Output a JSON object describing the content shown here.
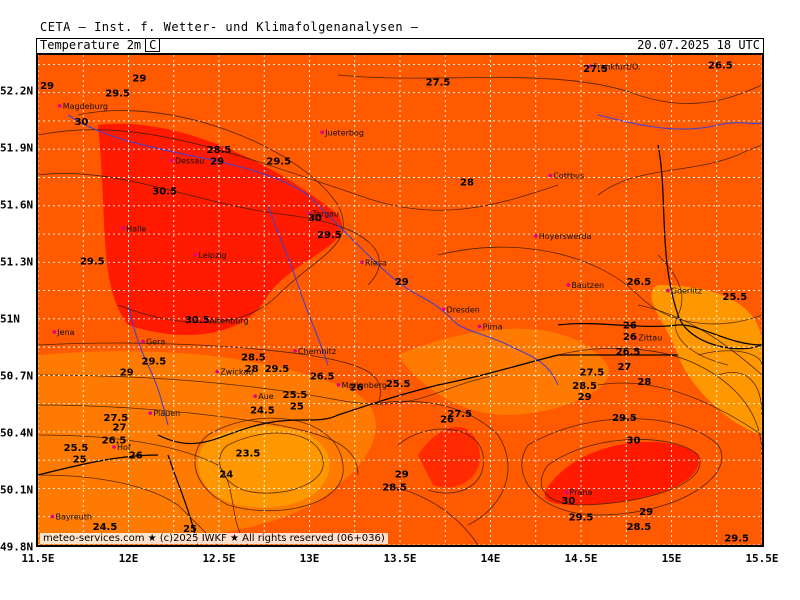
{
  "header": {
    "product": "CETA — Inst. f. Wetter- und Klimafolgenanalysen —",
    "parameter": "Temperature 2m",
    "unit": "C",
    "valid_time": "20.07.2025 18 UTC"
  },
  "axes": {
    "lon_labels": [
      "11.5E",
      "12E",
      "12.5E",
      "13E",
      "13.5E",
      "14E",
      "14.5E",
      "15E",
      "15.5E"
    ],
    "lat_labels": [
      "52.2N",
      "51.9N",
      "51.6N",
      "51.3N",
      "51N",
      "50.7N",
      "50.4N",
      "50.1N",
      "49.8N"
    ],
    "lon_range": [
      11.5,
      15.5
    ],
    "lat_range": [
      49.8,
      52.4
    ],
    "grid": true
  },
  "colors": {
    "background": "#ff5a00",
    "hot": "#ff1a00",
    "warm": "#ff7a00",
    "cool": "#ff9800",
    "grid": "#ffffff",
    "river": "#4a3fc9"
  },
  "cities": [
    {
      "name": "Magdeburg",
      "lon": 11.62,
      "lat": 52.13
    },
    {
      "name": "Dessau",
      "lon": 12.24,
      "lat": 51.84
    },
    {
      "name": "Jueterbog",
      "lon": 13.07,
      "lat": 51.99
    },
    {
      "name": "Frankfurt/O.",
      "lon": 14.55,
      "lat": 52.34
    },
    {
      "name": "Cottbus",
      "lon": 14.33,
      "lat": 51.76
    },
    {
      "name": "Halle",
      "lon": 11.97,
      "lat": 51.48
    },
    {
      "name": "Torgau",
      "lon": 13.0,
      "lat": 51.56
    },
    {
      "name": "Hoyerswerda",
      "lon": 14.25,
      "lat": 51.44
    },
    {
      "name": "Leipzig",
      "lon": 12.37,
      "lat": 51.34
    },
    {
      "name": "Riesa",
      "lon": 13.29,
      "lat": 51.3
    },
    {
      "name": "Bautzen",
      "lon": 14.43,
      "lat": 51.18
    },
    {
      "name": "Goerlitz",
      "lon": 14.98,
      "lat": 51.15
    },
    {
      "name": "Dresden",
      "lon": 13.74,
      "lat": 51.05
    },
    {
      "name": "Altenburg",
      "lon": 12.43,
      "lat": 50.99
    },
    {
      "name": "Jena",
      "lon": 11.59,
      "lat": 50.93
    },
    {
      "name": "Pirna",
      "lon": 13.94,
      "lat": 50.96
    },
    {
      "name": "Zittau",
      "lon": 14.8,
      "lat": 50.9
    },
    {
      "name": "Gera",
      "lon": 12.08,
      "lat": 50.88
    },
    {
      "name": "Chemnitz",
      "lon": 12.92,
      "lat": 50.83
    },
    {
      "name": "Zwickau",
      "lon": 12.49,
      "lat": 50.72
    },
    {
      "name": "Marienberg",
      "lon": 13.16,
      "lat": 50.65
    },
    {
      "name": "Aue",
      "lon": 12.7,
      "lat": 50.59
    },
    {
      "name": "Plauen",
      "lon": 12.12,
      "lat": 50.5
    },
    {
      "name": "Hof",
      "lon": 11.92,
      "lat": 50.32
    },
    {
      "name": "Praha",
      "lon": 14.42,
      "lat": 50.08
    },
    {
      "name": "Bayreuth",
      "lon": 11.58,
      "lat": 49.95
    }
  ],
  "contour_labels": [
    {
      "v": "29",
      "lon": 11.55,
      "lat": 52.24
    },
    {
      "v": "29",
      "lon": 12.06,
      "lat": 52.28
    },
    {
      "v": "29.5",
      "lon": 11.94,
      "lat": 52.2
    },
    {
      "v": "30",
      "lon": 11.74,
      "lat": 52.05
    },
    {
      "v": "28.5",
      "lon": 12.5,
      "lat": 51.9
    },
    {
      "v": "29",
      "lon": 12.49,
      "lat": 51.84
    },
    {
      "v": "29.5",
      "lon": 12.83,
      "lat": 51.84
    },
    {
      "v": "30.5",
      "lon": 12.2,
      "lat": 51.68
    },
    {
      "v": "30",
      "lon": 13.03,
      "lat": 51.54
    },
    {
      "v": "29.5",
      "lon": 13.11,
      "lat": 51.45
    },
    {
      "v": "29.5",
      "lon": 11.8,
      "lat": 51.31
    },
    {
      "v": "30.5",
      "lon": 12.38,
      "lat": 51.0
    },
    {
      "v": "29",
      "lon": 13.51,
      "lat": 51.2
    },
    {
      "v": "27.5",
      "lon": 13.71,
      "lat": 52.26
    },
    {
      "v": "27.5",
      "lon": 14.58,
      "lat": 52.33
    },
    {
      "v": "26.5",
      "lon": 15.27,
      "lat": 52.35
    },
    {
      "v": "28",
      "lon": 13.87,
      "lat": 51.73
    },
    {
      "v": "26.5",
      "lon": 14.82,
      "lat": 51.2
    },
    {
      "v": "25.5",
      "lon": 15.35,
      "lat": 51.12
    },
    {
      "v": "26",
      "lon": 14.77,
      "lat": 50.97
    },
    {
      "v": "26",
      "lon": 14.77,
      "lat": 50.91
    },
    {
      "v": "26.5",
      "lon": 14.76,
      "lat": 50.83
    },
    {
      "v": "27",
      "lon": 14.74,
      "lat": 50.75
    },
    {
      "v": "27.5",
      "lon": 14.56,
      "lat": 50.72
    },
    {
      "v": "28",
      "lon": 14.85,
      "lat": 50.67
    },
    {
      "v": "28.5",
      "lon": 14.52,
      "lat": 50.65
    },
    {
      "v": "29",
      "lon": 14.52,
      "lat": 50.59
    },
    {
      "v": "29.5",
      "lon": 14.74,
      "lat": 50.48
    },
    {
      "v": "30",
      "lon": 14.79,
      "lat": 50.36
    },
    {
      "v": "30",
      "lon": 14.43,
      "lat": 50.04
    },
    {
      "v": "29.5",
      "lon": 14.5,
      "lat": 49.95
    },
    {
      "v": "29",
      "lon": 14.86,
      "lat": 49.98
    },
    {
      "v": "28.5",
      "lon": 14.82,
      "lat": 49.9
    },
    {
      "v": "29.5",
      "lon": 15.36,
      "lat": 49.84
    },
    {
      "v": "29.5",
      "lon": 12.82,
      "lat": 50.74
    },
    {
      "v": "29",
      "lon": 11.99,
      "lat": 50.72
    },
    {
      "v": "29.5",
      "lon": 12.14,
      "lat": 50.78
    },
    {
      "v": "28.5",
      "lon": 12.69,
      "lat": 50.8
    },
    {
      "v": "28",
      "lon": 12.68,
      "lat": 50.74
    },
    {
      "v": "26.5",
      "lon": 13.07,
      "lat": 50.7
    },
    {
      "v": "26",
      "lon": 13.26,
      "lat": 50.64
    },
    {
      "v": "25.5",
      "lon": 13.49,
      "lat": 50.66
    },
    {
      "v": "25.5",
      "lon": 12.92,
      "lat": 50.6
    },
    {
      "v": "25",
      "lon": 12.93,
      "lat": 50.54
    },
    {
      "v": "24.5",
      "lon": 12.74,
      "lat": 50.52
    },
    {
      "v": "27.5",
      "lon": 11.93,
      "lat": 50.48
    },
    {
      "v": "27",
      "lon": 11.95,
      "lat": 50.43
    },
    {
      "v": "26.5",
      "lon": 11.92,
      "lat": 50.36
    },
    {
      "v": "26",
      "lon": 12.04,
      "lat": 50.28
    },
    {
      "v": "25.5",
      "lon": 11.71,
      "lat": 50.32
    },
    {
      "v": "25",
      "lon": 11.73,
      "lat": 50.26
    },
    {
      "v": "23.5",
      "lon": 12.66,
      "lat": 50.29
    },
    {
      "v": "24",
      "lon": 12.54,
      "lat": 50.18
    },
    {
      "v": "26",
      "lon": 13.76,
      "lat": 50.47
    },
    {
      "v": "27.5",
      "lon": 13.83,
      "lat": 50.5
    },
    {
      "v": "29",
      "lon": 13.51,
      "lat": 50.18
    },
    {
      "v": "28.5",
      "lon": 13.47,
      "lat": 50.11
    },
    {
      "v": "24.5",
      "lon": 11.87,
      "lat": 49.9
    },
    {
      "v": "25",
      "lon": 12.34,
      "lat": 49.89
    }
  ],
  "copyright": "meteo-services.com ★ (c)2025 IWKF ★ All rights reserved (06+036)"
}
